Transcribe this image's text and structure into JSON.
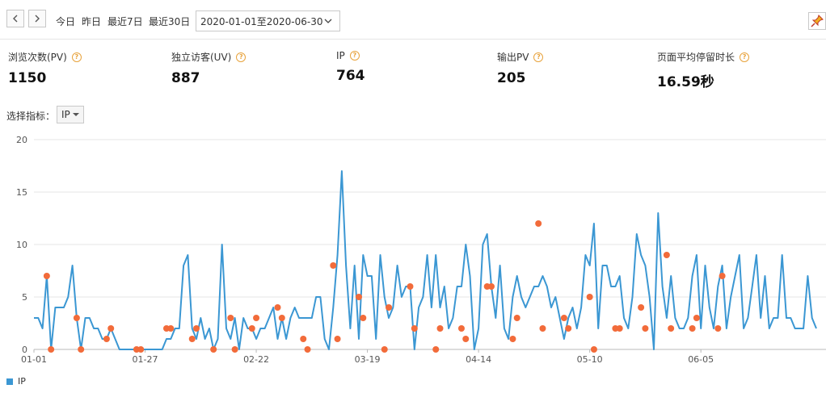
{
  "toolbar": {
    "prev_label": "<",
    "next_label": ">",
    "quick_ranges": [
      "今日",
      "昨日",
      "最近7日",
      "最近30日"
    ],
    "date_range": "2020-01-01至2020-06-30"
  },
  "metrics": [
    {
      "label": "浏览次数(PV)",
      "value": "1150"
    },
    {
      "label": "独立访客(UV)",
      "value": "887"
    },
    {
      "label": "IP",
      "value": "764"
    },
    {
      "label": "输出PV",
      "value": "205"
    },
    {
      "label": "页面平均停留时长",
      "value": "16.59秒"
    }
  ],
  "selector": {
    "label": "选择指标：",
    "value": "IP"
  },
  "colors": {
    "line": "#3b97d3",
    "marker": "#f26b3a",
    "grid": "#e6e6e6",
    "help": "#e8a33d"
  },
  "chart_data": {
    "type": "line",
    "x_start": "2020-01-01",
    "x_end": "2020-06-30",
    "xtick_labels": [
      "01-01",
      "01-27",
      "02-22",
      "03-19",
      "04-14",
      "05-10",
      "06-05"
    ],
    "ylim": [
      0,
      20
    ],
    "yticks": [
      0,
      5,
      10,
      15,
      20
    ],
    "grid": true,
    "legend_position": "bottom-left",
    "series": [
      {
        "name": "IP",
        "values": [
          3,
          3,
          2,
          7,
          0,
          4,
          4,
          4,
          5,
          8,
          3,
          0,
          3,
          3,
          2,
          2,
          1,
          1,
          2,
          1,
          0,
          0,
          0,
          0,
          0,
          0,
          0,
          0,
          0,
          0,
          0,
          1,
          1,
          2,
          2,
          8,
          9,
          2,
          1,
          3,
          1,
          2,
          0,
          1,
          10,
          2,
          1,
          3,
          0,
          3,
          2,
          2,
          1,
          2,
          2,
          3,
          4,
          1,
          3,
          1,
          3,
          4,
          3,
          3,
          3,
          3,
          5,
          5,
          1,
          0,
          4,
          9,
          17,
          8,
          2,
          8,
          1,
          9,
          7,
          7,
          1,
          9,
          5,
          3,
          4,
          8,
          5,
          6,
          6,
          0,
          4,
          5,
          9,
          4,
          9,
          4,
          6,
          2,
          3,
          6,
          6,
          10,
          7,
          0,
          2,
          10,
          11,
          6,
          3,
          8,
          2,
          1,
          5,
          7,
          5,
          4,
          5,
          6,
          6,
          7,
          6,
          4,
          5,
          3,
          1,
          3,
          4,
          2,
          4,
          9,
          8,
          12,
          2,
          8,
          8,
          6,
          6,
          7,
          3,
          2,
          5,
          11,
          9,
          8,
          5,
          0,
          13,
          6,
          3,
          7,
          3,
          2,
          2,
          3,
          7,
          9,
          2,
          8,
          4,
          2,
          6,
          8,
          2,
          5,
          7,
          9,
          2,
          3,
          6,
          9,
          3,
          7,
          2,
          3,
          3,
          9,
          3,
          3,
          2,
          2,
          2,
          7,
          3,
          2
        ],
        "markers": [
          [
            3,
            7
          ],
          [
            4,
            0
          ],
          [
            10,
            3
          ],
          [
            11,
            0
          ],
          [
            17,
            1
          ],
          [
            18,
            2
          ],
          [
            24,
            0
          ],
          [
            25,
            0
          ],
          [
            31,
            2
          ],
          [
            32,
            2
          ],
          [
            37,
            1
          ],
          [
            38,
            2
          ],
          [
            42,
            0
          ],
          [
            46,
            3
          ],
          [
            47,
            0
          ],
          [
            51,
            2
          ],
          [
            52,
            3
          ],
          [
            57,
            4
          ],
          [
            58,
            3
          ],
          [
            63,
            1
          ],
          [
            64,
            0
          ],
          [
            70,
            8
          ],
          [
            71,
            1
          ],
          [
            76,
            5
          ],
          [
            77,
            3
          ],
          [
            82,
            0
          ],
          [
            83,
            4
          ],
          [
            88,
            6
          ],
          [
            89,
            2
          ],
          [
            94,
            0
          ],
          [
            95,
            2
          ],
          [
            100,
            2
          ],
          [
            101,
            1
          ],
          [
            106,
            6
          ],
          [
            107,
            6
          ],
          [
            112,
            1
          ],
          [
            113,
            3
          ],
          [
            118,
            12
          ],
          [
            119,
            2
          ],
          [
            124,
            3
          ],
          [
            125,
            2
          ],
          [
            130,
            5
          ],
          [
            131,
            0
          ],
          [
            136,
            2
          ],
          [
            137,
            2
          ],
          [
            142,
            4
          ],
          [
            143,
            2
          ],
          [
            148,
            9
          ],
          [
            149,
            2
          ],
          [
            154,
            2
          ],
          [
            155,
            3
          ],
          [
            160,
            2
          ],
          [
            161,
            7
          ]
        ]
      }
    ]
  }
}
